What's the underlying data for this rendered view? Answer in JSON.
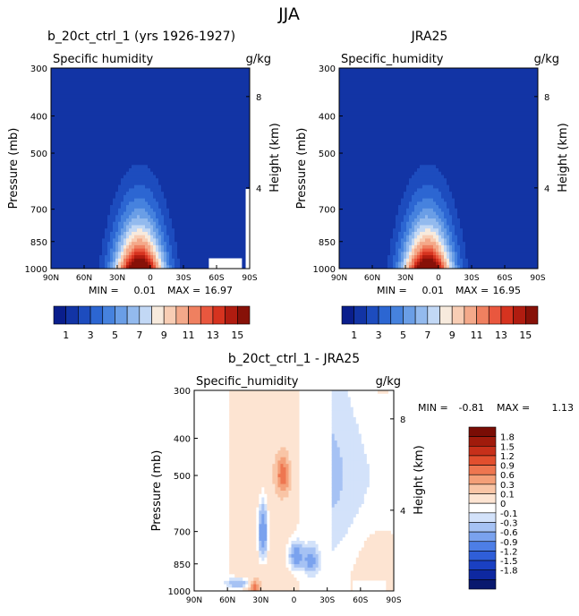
{
  "figure": {
    "title": "JJA"
  },
  "colors": {
    "abs_scale": [
      "#0a1e8c",
      "#1234a5",
      "#1d4cbe",
      "#2c66d2",
      "#4682de",
      "#6a9ee6",
      "#93baee",
      "#c2d8f5",
      "#f7eadd",
      "#f8cdb4",
      "#f4a98a",
      "#ef8060",
      "#e9573e",
      "#d6331f",
      "#b01c10",
      "#871108"
    ],
    "diff_scale": [
      "#08186e",
      "#0e28a0",
      "#1a40c2",
      "#2f5ed8",
      "#4d7ee6",
      "#7aa2ee",
      "#a6c2f4",
      "#d3e2fa",
      "#ffffff",
      "#fde4d2",
      "#f9c5a6",
      "#f49f78",
      "#ee7650",
      "#e24f2e",
      "#c7301a",
      "#a01b0c",
      "#7a0d05"
    ]
  },
  "chart_data": [
    {
      "type": "heatmap",
      "title": "b_20ct_ctrl_1 (yrs 1926-1927)",
      "subtitle_left": "Specific humidity",
      "subtitle_right": "g/kg",
      "xlabel": "",
      "ylabel": "Pressure (mb)",
      "y2label": "Height (km)",
      "x_ticks": [
        "90N",
        "60N",
        "30N",
        "0",
        "30S",
        "60S",
        "90S"
      ],
      "x_tick_values": [
        90,
        60,
        30,
        0,
        -30,
        -60,
        -90
      ],
      "y_ticks": [
        300,
        400,
        500,
        700,
        850,
        1000
      ],
      "y2_ticks": [
        {
          "label": "8",
          "pressure": 356
        },
        {
          "label": "4",
          "pressure": 616
        }
      ],
      "ylim": [
        1000,
        300
      ],
      "xlim": [
        90,
        -90
      ],
      "stats": {
        "min_label": "MIN =",
        "min": "0.01",
        "max_label": "MAX =",
        "max": "16.97"
      },
      "levels": [
        0,
        1,
        2,
        3,
        4,
        5,
        6,
        7,
        8,
        9,
        10,
        11,
        12,
        13,
        14,
        15,
        16
      ],
      "colorbar_labels": [
        "1",
        "3",
        "5",
        "7",
        "9",
        "11",
        "13",
        "15"
      ],
      "masked_region": {
        "lat_from": -53,
        "lat_to": -83,
        "pressure_from": 940,
        "pressure_to": 1000
      },
      "field": {
        "peak_lat": 10,
        "peak_value": 17.5,
        "surface_decay_per_deg": 0.0023,
        "scale_height_factor": 2.6
      }
    },
    {
      "type": "heatmap",
      "title": "JRA25",
      "subtitle_left": "Specific_humidity",
      "subtitle_right": "g/kg",
      "xlabel": "",
      "ylabel": "Pressure (mb)",
      "y2label": "Height (km)",
      "x_ticks": [
        "90N",
        "60N",
        "30N",
        "0",
        "30S",
        "60S",
        "90S"
      ],
      "x_tick_values": [
        90,
        60,
        30,
        0,
        -30,
        -60,
        -90
      ],
      "y_ticks": [
        300,
        400,
        500,
        700,
        850,
        1000
      ],
      "y2_ticks": [
        {
          "label": "8",
          "pressure": 356
        },
        {
          "label": "4",
          "pressure": 616
        }
      ],
      "ylim": [
        1000,
        300
      ],
      "xlim": [
        90,
        -90
      ],
      "stats": {
        "min_label": "MIN =",
        "min": "0.01",
        "max_label": "MAX =",
        "max": "16.95"
      },
      "levels": [
        0,
        1,
        2,
        3,
        4,
        5,
        6,
        7,
        8,
        9,
        10,
        11,
        12,
        13,
        14,
        15,
        16
      ],
      "colorbar_labels": [
        "1",
        "3",
        "5",
        "7",
        "9",
        "11",
        "13",
        "15"
      ],
      "field": {
        "peak_lat": 10,
        "peak_value": 17.5,
        "surface_decay_per_deg": 0.0023,
        "scale_height_factor": 2.6
      }
    },
    {
      "type": "heatmap",
      "title": "b_20ct_ctrl_1 - JRA25",
      "subtitle_left": "Specific_humidity",
      "subtitle_right": "g/kg",
      "xlabel": "",
      "ylabel": "Pressure (mb)",
      "y2label": "Height (km)",
      "x_ticks": [
        "90N",
        "60N",
        "30N",
        "0",
        "30S",
        "60S",
        "90S"
      ],
      "x_tick_values": [
        90,
        60,
        30,
        0,
        -30,
        -60,
        -90
      ],
      "y_ticks": [
        300,
        400,
        500,
        700,
        850,
        1000
      ],
      "y2_ticks": [
        {
          "label": "8",
          "pressure": 356
        },
        {
          "label": "4",
          "pressure": 616
        }
      ],
      "ylim": [
        1000,
        300
      ],
      "xlim": [
        90,
        -90
      ],
      "stats": {
        "min_label": "MIN =",
        "min": "-0.81",
        "max_label": "MAX =",
        "max": "1.13"
      },
      "levels": [
        -1.8,
        -1.5,
        -1.2,
        -0.9,
        -0.6,
        -0.3,
        -0.1,
        0,
        0.1,
        0.3,
        0.6,
        0.9,
        1.2,
        1.5,
        1.8
      ],
      "colorbar_labels": [
        "1.8",
        "1.5",
        "1.2",
        "0.9",
        "0.6",
        "0.3",
        "0.1",
        "0",
        "-0.1",
        "-0.3",
        "-0.6",
        "-0.9",
        "-1.2",
        "-1.5",
        "-1.8"
      ],
      "masked_region": {
        "lat_from": -53,
        "lat_to": -83,
        "pressure_from": 940,
        "pressure_to": 1000
      },
      "features": [
        {
          "lat": 10,
          "pressure": 500,
          "value": 1.0,
          "width_lat": 6,
          "width_p": 55
        },
        {
          "lat": 28,
          "pressure": 700,
          "value": -0.8,
          "width_lat": 4,
          "width_p": 110
        },
        {
          "lat": -2,
          "pressure": 810,
          "value": -0.6,
          "width_lat": 6,
          "width_p": 60
        },
        {
          "lat": -15,
          "pressure": 830,
          "value": -0.5,
          "width_lat": 6,
          "width_p": 60
        },
        {
          "lat": 35,
          "pressure": 980,
          "value": 0.9,
          "width_lat": 4,
          "width_p": 40
        },
        {
          "lat": 50,
          "pressure": 955,
          "value": -0.4,
          "width_lat": 10,
          "width_p": 25
        }
      ]
    }
  ]
}
